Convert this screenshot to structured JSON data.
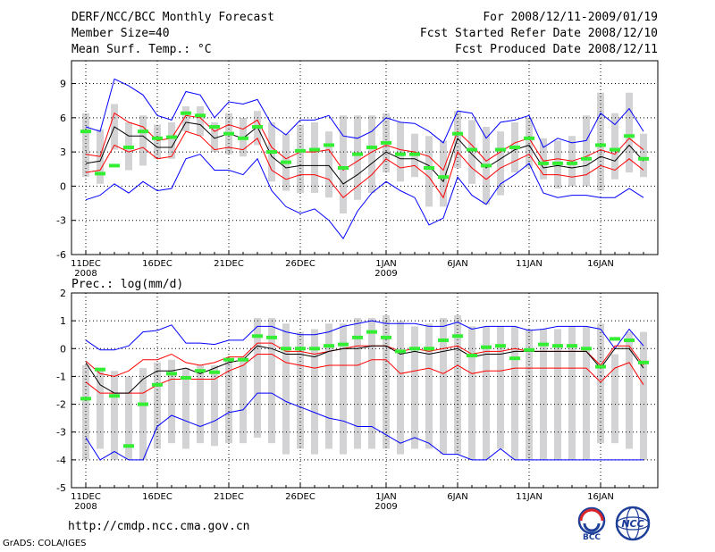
{
  "header": {
    "title": "DERF/NCC/BCC Monthly Forecast",
    "member_size": "Member Size=40",
    "variable_top": "Mean Surf. Temp.: °C",
    "forecast_period": "For 2008/12/11-2009/01/19",
    "started_date": "Fcst Started Refer Date 2008/12/10",
    "produced_date": "Fcst Produced Date 2008/12/11"
  },
  "footer": {
    "url": "http://cmdp.ncc.cma.gov.cn",
    "credit": "GrADS: COLA/IGES",
    "logo_left_text": "BCC",
    "logo_right_text": "NCC"
  },
  "colors": {
    "max_line": "#0000ff",
    "spread_line": "#ff0000",
    "mean_line": "#000000",
    "box": "#d3d3d6",
    "observed": "#33ee33",
    "grid": "#000000"
  },
  "chart_data": [
    {
      "type": "box-line",
      "title": "Mean Surf. Temp.: °C",
      "xlabel": "",
      "ylabel": "",
      "ylim": [
        -6,
        11
      ],
      "yticks": [
        -6,
        -3,
        0,
        3,
        6,
        9
      ],
      "xticks": [
        {
          "day": 1,
          "label": "11DEC",
          "sublabel": "2008"
        },
        {
          "day": 6,
          "label": "16DEC",
          "sublabel": ""
        },
        {
          "day": 11,
          "label": "21DEC",
          "sublabel": ""
        },
        {
          "day": 16,
          "label": "26DEC",
          "sublabel": ""
        },
        {
          "day": 22,
          "label": "1JAN",
          "sublabel": "2009"
        },
        {
          "day": 27,
          "label": "6JAN",
          "sublabel": ""
        },
        {
          "day": 32,
          "label": "11JAN",
          "sublabel": ""
        },
        {
          "day": 37,
          "label": "16JAN",
          "sublabel": ""
        }
      ],
      "days": [
        1,
        2,
        3,
        4,
        5,
        6,
        7,
        8,
        9,
        10,
        11,
        12,
        13,
        14,
        15,
        16,
        17,
        18,
        19,
        20,
        21,
        22,
        23,
        24,
        25,
        26,
        27,
        28,
        29,
        30,
        31,
        32,
        33,
        34,
        35,
        36,
        37,
        38,
        39,
        40
      ],
      "max": [
        5.2,
        4.8,
        9.4,
        8.8,
        8.0,
        6.2,
        5.8,
        8.3,
        8.0,
        6.0,
        7.4,
        7.2,
        7.6,
        5.4,
        4.5,
        5.8,
        5.8,
        6.2,
        4.4,
        4.2,
        4.8,
        6.0,
        5.6,
        5.5,
        4.8,
        3.8,
        6.6,
        6.4,
        4.2,
        5.6,
        5.8,
        6.2,
        3.4,
        4.2,
        3.8,
        4.0,
        6.4,
        5.4,
        6.8,
        4.8
      ],
      "upper": [
        2.8,
        2.6,
        6.4,
        5.6,
        5.2,
        4.0,
        4.2,
        6.2,
        6.0,
        4.8,
        5.4,
        5.0,
        5.8,
        3.4,
        2.4,
        3.0,
        3.0,
        3.2,
        1.4,
        2.2,
        3.0,
        3.6,
        3.2,
        3.0,
        2.6,
        1.4,
        4.8,
        3.6,
        2.2,
        3.0,
        3.8,
        4.2,
        2.2,
        2.4,
        2.2,
        2.6,
        3.2,
        2.8,
        4.2,
        3.2
      ],
      "mean": [
        2.0,
        2.2,
        5.2,
        4.4,
        4.4,
        3.4,
        3.4,
        5.6,
        5.4,
        4.2,
        4.6,
        4.2,
        5.2,
        2.6,
        1.6,
        1.8,
        1.8,
        1.8,
        0.2,
        1.0,
        2.0,
        3.0,
        2.4,
        2.4,
        1.8,
        0.4,
        4.2,
        2.8,
        1.6,
        2.4,
        3.2,
        3.6,
        1.6,
        1.8,
        1.6,
        1.8,
        2.6,
        2.2,
        3.6,
        2.2
      ],
      "lower": [
        1.2,
        1.4,
        3.6,
        3.0,
        3.4,
        2.4,
        2.6,
        4.8,
        4.4,
        3.2,
        3.4,
        3.2,
        4.2,
        1.4,
        0.6,
        1.0,
        1.0,
        0.6,
        -1.0,
        0.0,
        1.0,
        2.4,
        1.6,
        1.8,
        0.8,
        -1.0,
        3.0,
        1.6,
        0.6,
        1.6,
        2.2,
        2.8,
        1.0,
        1.0,
        0.8,
        1.0,
        1.8,
        1.4,
        2.4,
        1.4
      ],
      "min": [
        -1.2,
        -0.8,
        0.2,
        -0.6,
        0.4,
        -0.4,
        -0.2,
        2.4,
        2.8,
        1.4,
        1.4,
        1.0,
        2.4,
        -0.4,
        -1.8,
        -2.4,
        -2.0,
        -3.0,
        -4.6,
        -2.2,
        -0.6,
        0.4,
        -0.4,
        -1.0,
        -3.4,
        -2.8,
        0.8,
        -0.8,
        -1.6,
        0.2,
        1.0,
        2.0,
        -0.6,
        -1.0,
        -0.8,
        -0.8,
        -1.0,
        -1.0,
        -0.2,
        -1.0
      ],
      "box_top": [
        6.4,
        5.0,
        7.2,
        5.6,
        6.2,
        5.4,
        5.6,
        7.0,
        7.0,
        5.6,
        6.4,
        6.0,
        6.6,
        5.6,
        4.6,
        5.4,
        5.6,
        4.8,
        6.2,
        6.2,
        6.2,
        6.4,
        5.6,
        4.6,
        4.4,
        4.0,
        6.6,
        5.8,
        5.2,
        4.8,
        5.6,
        6.0,
        4.2,
        4.0,
        4.4,
        6.2,
        8.2,
        6.4,
        8.2,
        4.6
      ],
      "box_bottom": [
        0.8,
        0.2,
        3.2,
        1.4,
        1.8,
        2.4,
        2.4,
        4.8,
        4.4,
        3.0,
        2.8,
        2.6,
        3.6,
        0.4,
        -0.4,
        -0.6,
        -0.6,
        -1.0,
        -2.4,
        -1.2,
        -0.6,
        1.2,
        0.4,
        0.8,
        -1.8,
        -1.8,
        1.6,
        0.2,
        -1.6,
        -0.8,
        1.2,
        1.6,
        0.6,
        -0.2,
        0.0,
        0.0,
        -0.4,
        0.6,
        1.2,
        0.8
      ],
      "observed": [
        4.8,
        1.1,
        1.8,
        3.4,
        4.8,
        4.2,
        4.3,
        6.4,
        6.2,
        5.2,
        4.6,
        4.2,
        5.2,
        3.0,
        2.1,
        3.1,
        3.2,
        3.6,
        1.6,
        2.8,
        3.4,
        3.8,
        2.8,
        2.8,
        1.6,
        0.8,
        4.6,
        3.2,
        1.8,
        3.2,
        3.4,
        4.2,
        2.0,
        2.0,
        2.0,
        2.4,
        3.6,
        3.2,
        4.4,
        2.4
      ]
    },
    {
      "type": "box-line",
      "title": "Prec.: log(mm/d)",
      "xlabel": "",
      "ylabel": "",
      "ylim": [
        -5,
        2
      ],
      "yticks": [
        -5,
        -4,
        -3,
        -2,
        -1,
        0,
        1,
        2
      ],
      "xticks": [
        {
          "day": 1,
          "label": "11DEC",
          "sublabel": "2008"
        },
        {
          "day": 6,
          "label": "16DEC",
          "sublabel": ""
        },
        {
          "day": 11,
          "label": "21DEC",
          "sublabel": ""
        },
        {
          "day": 16,
          "label": "26DEC",
          "sublabel": ""
        },
        {
          "day": 22,
          "label": "1JAN",
          "sublabel": "2009"
        },
        {
          "day": 27,
          "label": "6JAN",
          "sublabel": ""
        },
        {
          "day": 32,
          "label": "11JAN",
          "sublabel": ""
        },
        {
          "day": 37,
          "label": "16JAN",
          "sublabel": ""
        }
      ],
      "days": [
        1,
        2,
        3,
        4,
        5,
        6,
        7,
        8,
        9,
        10,
        11,
        12,
        13,
        14,
        15,
        16,
        17,
        18,
        19,
        20,
        21,
        22,
        23,
        24,
        25,
        26,
        27,
        28,
        29,
        30,
        31,
        32,
        33,
        34,
        35,
        36,
        37,
        38,
        39,
        40
      ],
      "max": [
        0.3,
        -0.05,
        -0.05,
        0.1,
        0.6,
        0.65,
        0.85,
        0.2,
        0.2,
        0.15,
        0.3,
        0.3,
        0.8,
        0.8,
        0.6,
        0.5,
        0.5,
        0.6,
        0.8,
        0.9,
        1.0,
        0.9,
        0.9,
        0.9,
        0.8,
        0.8,
        0.95,
        0.7,
        0.8,
        0.8,
        0.8,
        0.65,
        0.7,
        0.8,
        0.8,
        0.8,
        0.7,
        0.0,
        0.7,
        0.1
      ],
      "upper": [
        -0.45,
        -0.9,
        -1.0,
        -0.8,
        -0.4,
        -0.4,
        -0.2,
        -0.5,
        -0.6,
        -0.5,
        -0.3,
        -0.3,
        0.2,
        0.2,
        -0.1,
        -0.1,
        -0.2,
        -0.1,
        0.0,
        0.1,
        0.1,
        0.1,
        -0.1,
        0.0,
        -0.1,
        0.0,
        0.1,
        -0.2,
        -0.1,
        -0.1,
        0.0,
        -0.1,
        -0.1,
        -0.1,
        -0.1,
        -0.1,
        -0.6,
        0.1,
        0.1,
        -0.6
      ],
      "mean": [
        -0.5,
        -1.3,
        -1.6,
        -1.6,
        -1.1,
        -0.8,
        -0.8,
        -0.7,
        -0.9,
        -0.7,
        -0.5,
        -0.4,
        0.1,
        0.0,
        -0.2,
        -0.2,
        -0.3,
        -0.1,
        0.0,
        0.0,
        0.1,
        0.1,
        -0.2,
        -0.1,
        -0.2,
        -0.1,
        0.0,
        -0.3,
        -0.2,
        -0.2,
        -0.1,
        -0.1,
        -0.1,
        -0.1,
        -0.1,
        -0.1,
        -0.7,
        0.0,
        0.0,
        -0.7
      ],
      "lower": [
        -1.2,
        -1.6,
        -1.6,
        -1.6,
        -1.6,
        -1.3,
        -1.1,
        -1.1,
        -1.1,
        -1.1,
        -0.8,
        -0.6,
        -0.2,
        -0.2,
        -0.5,
        -0.6,
        -0.7,
        -0.6,
        -0.6,
        -0.6,
        -0.4,
        -0.4,
        -0.9,
        -0.8,
        -0.7,
        -0.9,
        -0.6,
        -0.9,
        -0.8,
        -0.8,
        -0.7,
        -0.7,
        -0.7,
        -0.7,
        -0.7,
        -0.7,
        -1.2,
        -0.7,
        -0.5,
        -1.3
      ],
      "min": [
        -3.2,
        -4.0,
        -3.7,
        -4.0,
        -4.0,
        -2.8,
        -2.4,
        -2.6,
        -2.8,
        -2.6,
        -2.3,
        -2.2,
        -1.6,
        -1.6,
        -1.9,
        -2.1,
        -2.3,
        -2.5,
        -2.6,
        -2.8,
        -2.8,
        -3.1,
        -3.4,
        -3.2,
        -3.4,
        -3.8,
        -3.8,
        -4.0,
        -4.0,
        -3.6,
        -4.0,
        -4.0,
        -4.0,
        -4.0,
        -4.0,
        -4.0,
        -4.0,
        -4.0,
        -4.0,
        -4.0
      ],
      "box_top": [
        -0.6,
        -0.7,
        -0.8,
        -1.0,
        -0.7,
        -0.5,
        -0.4,
        -0.7,
        -0.6,
        -0.6,
        -0.4,
        -0.3,
        1.1,
        1.1,
        0.9,
        0.6,
        0.7,
        0.9,
        0.9,
        1.1,
        1.1,
        1.2,
        1.0,
        0.8,
        0.9,
        1.1,
        1.2,
        0.8,
        0.8,
        0.8,
        0.8,
        0.7,
        0.7,
        0.7,
        0.8,
        0.8,
        0.9,
        -0.2,
        0.6,
        0.6
      ],
      "box_bottom": [
        -4.0,
        -3.6,
        -4.0,
        -4.0,
        -4.0,
        -3.6,
        -3.4,
        -3.6,
        -3.4,
        -3.5,
        -3.4,
        -3.4,
        -3.2,
        -3.4,
        -3.8,
        -3.6,
        -3.8,
        -3.6,
        -3.8,
        -3.6,
        -3.6,
        -3.6,
        -3.8,
        -3.6,
        -3.6,
        -3.8,
        -3.8,
        -4.0,
        -4.0,
        -3.6,
        -4.0,
        -4.0,
        -4.0,
        -4.0,
        -4.0,
        -4.0,
        -3.4,
        -3.4,
        -3.6,
        -4.0
      ],
      "observed": [
        -1.8,
        -0.75,
        -1.7,
        -3.5,
        -2.0,
        -1.3,
        -0.9,
        -1.05,
        -0.8,
        -0.85,
        -0.4,
        -0.4,
        0.45,
        0.4,
        0.0,
        0.0,
        0.0,
        0.1,
        0.15,
        0.4,
        0.6,
        0.4,
        -0.1,
        0.0,
        0.0,
        0.3,
        0.45,
        -0.25,
        0.05,
        0.1,
        -0.35,
        -0.05,
        0.15,
        0.1,
        0.1,
        0.0,
        -0.65,
        0.35,
        0.3,
        -0.5
      ]
    }
  ]
}
